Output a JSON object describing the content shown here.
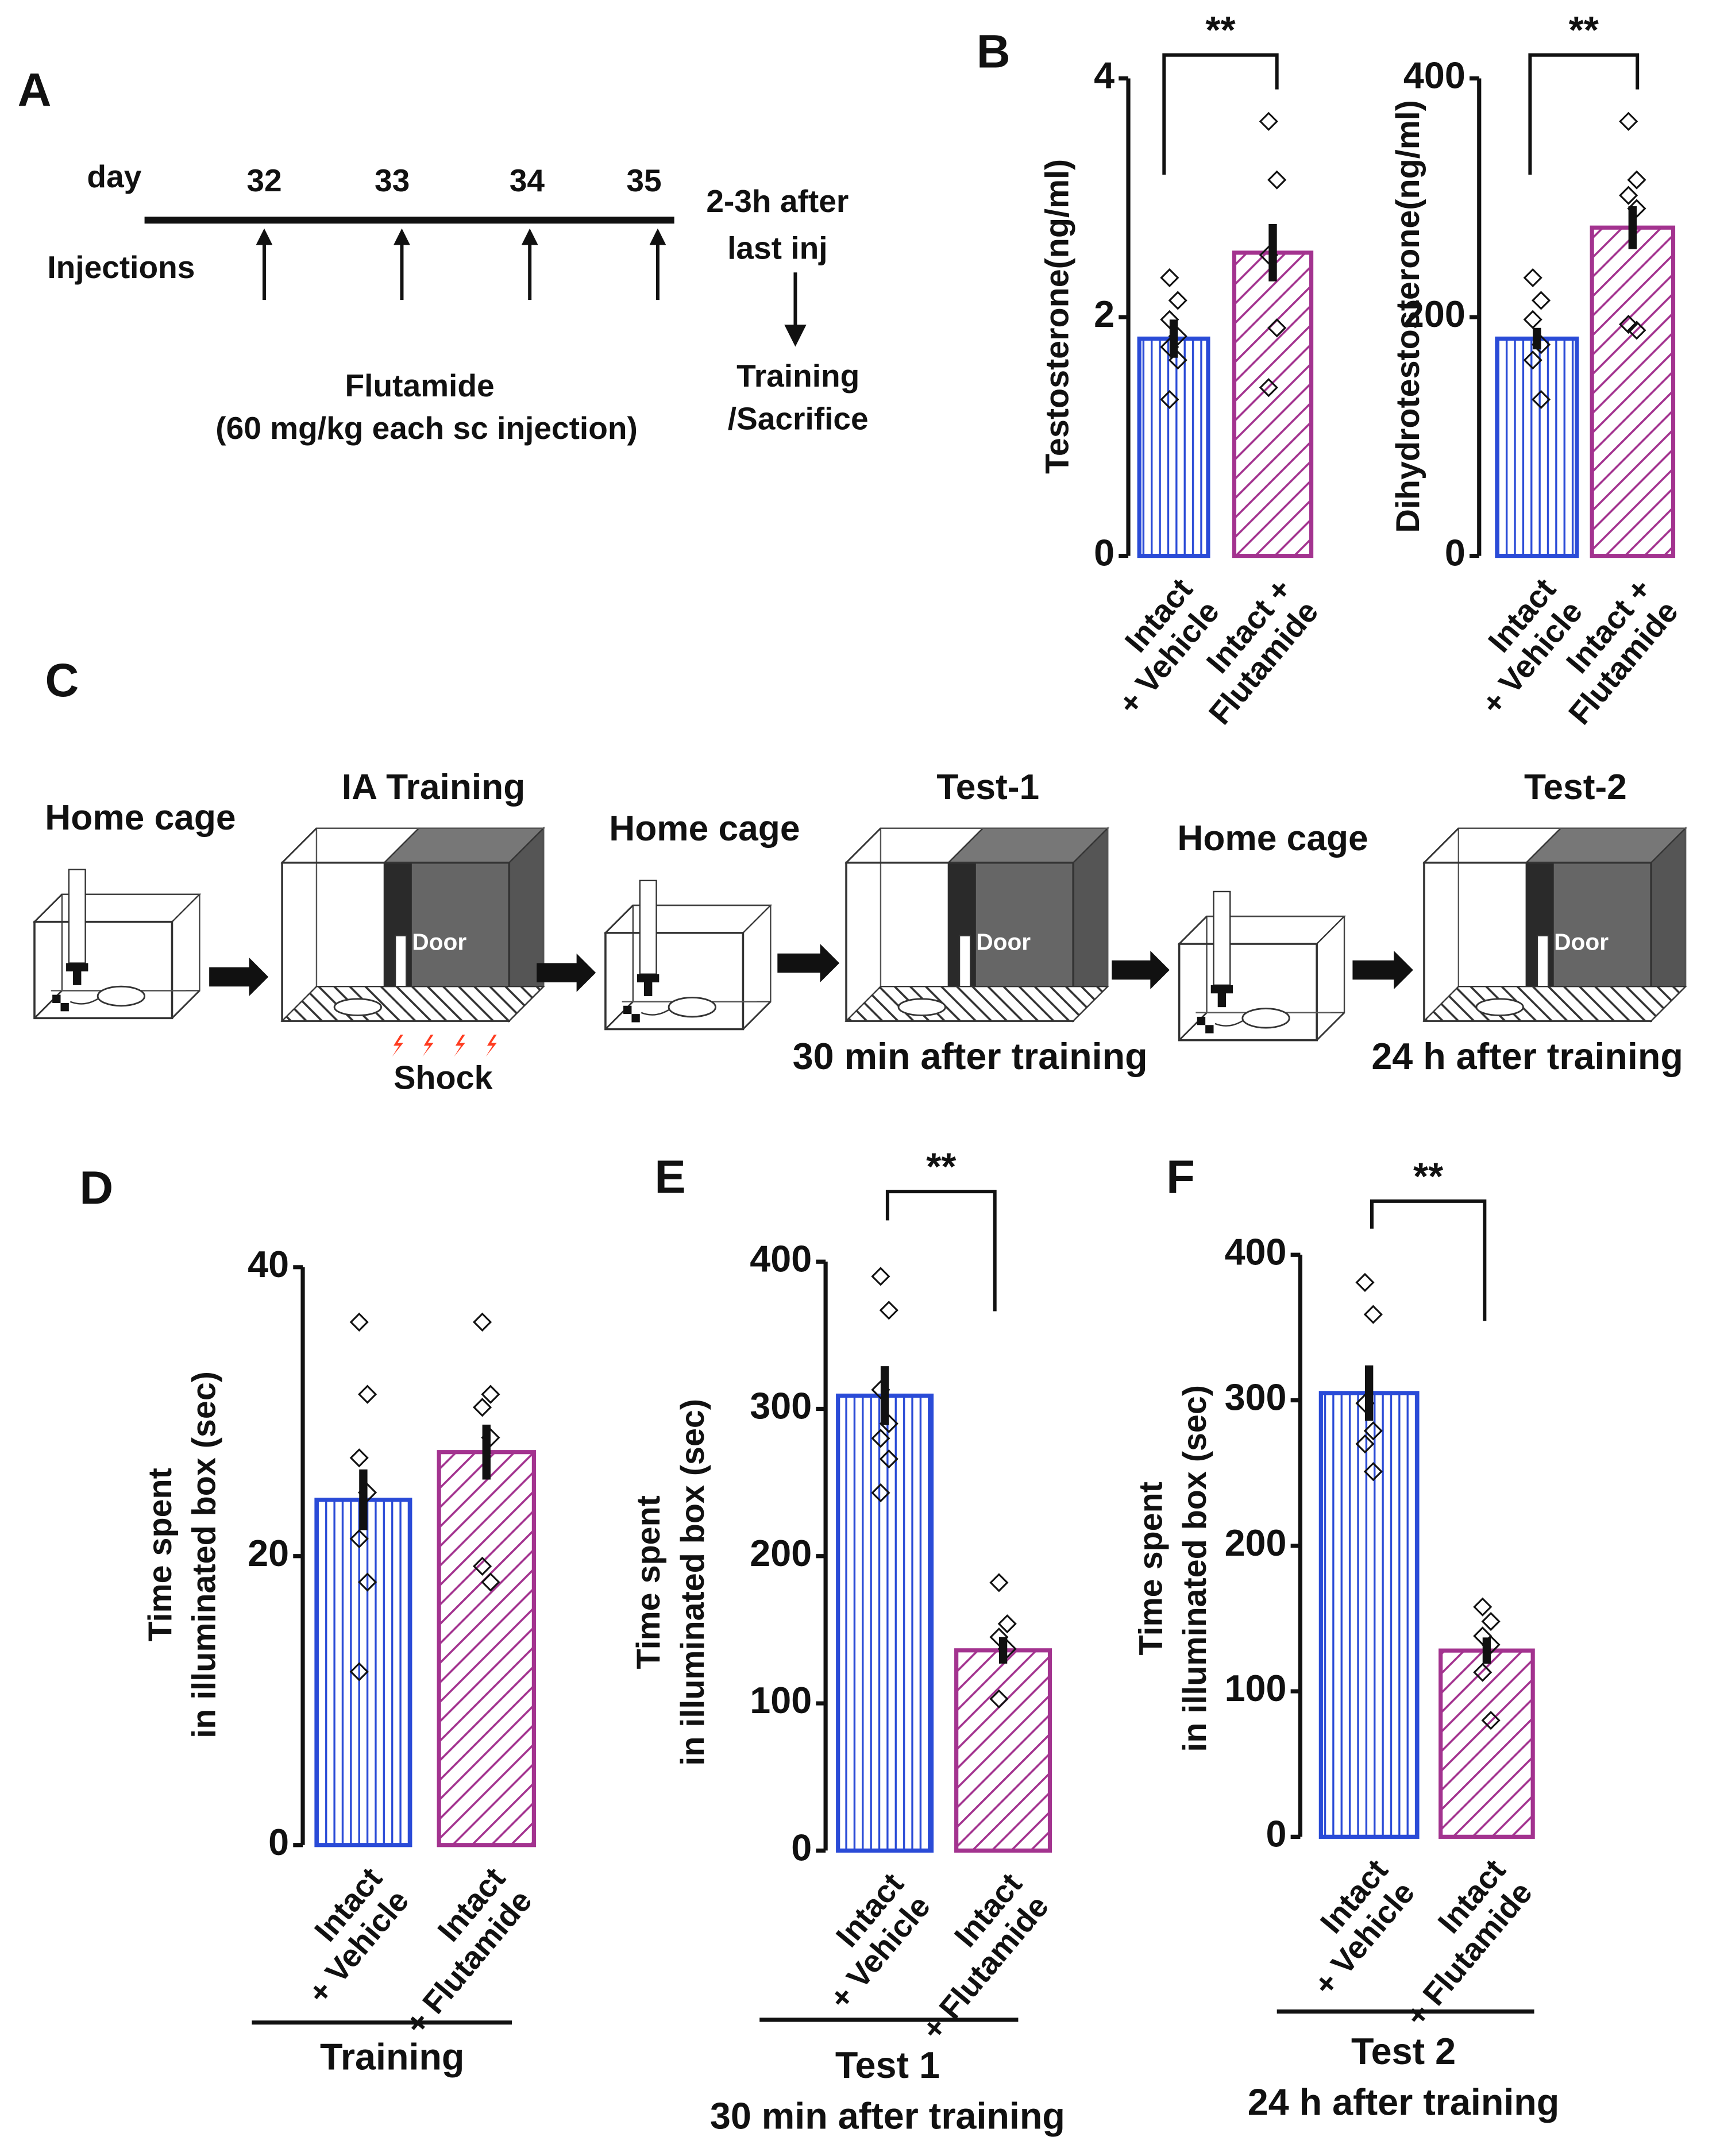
{
  "panel_labels": [
    "A",
    "B",
    "C",
    "D",
    "E",
    "F"
  ],
  "timeline": {
    "day_label": "day",
    "days": [
      "32",
      "33",
      "34",
      "35"
    ],
    "injections_label": "Injections",
    "after": [
      "2-3h after",
      "last inj"
    ],
    "outcome": [
      "Training",
      "/Sacrifice"
    ],
    "drug": [
      "Flutamide",
      "(60 mg/kg each sc injection)"
    ]
  },
  "protocol": {
    "stages": [
      "Home cage",
      "IA Training",
      "Home cage",
      "Test-1",
      "Home cage",
      "Test-2"
    ],
    "door": "Door",
    "shock": "Shock",
    "test1_time": "30 min after training",
    "test2_time": "24 h after training"
  },
  "chart_data": [
    {
      "type": "bar",
      "ylabel": [
        "Testosterone(ng/ml)"
      ],
      "categories": [
        [
          "Intact",
          "+ Vehicle"
        ],
        [
          "Intact +",
          "Flutamide"
        ]
      ],
      "values": [
        1.82,
        2.54
      ],
      "errors": [
        0.16,
        0.24
      ],
      "points": [
        [
          2.33,
          2.14,
          1.98,
          1.84,
          1.75,
          1.64,
          1.31
        ],
        [
          3.64,
          3.15,
          2.52,
          1.91,
          1.41
        ]
      ],
      "colors": [
        "#2a4bd7",
        "#a3338f"
      ],
      "ylim": [
        0,
        4
      ],
      "yticks": [
        0,
        2,
        4
      ],
      "significance": "**"
    },
    {
      "type": "bar",
      "ylabel": [
        "Dihydrotestosterone(ng/ml)"
      ],
      "categories": [
        [
          "Intact",
          "+ Vehicle"
        ],
        [
          "Intact +",
          "Flutamide"
        ]
      ],
      "values": [
        182,
        275
      ],
      "errors": [
        9,
        18
      ],
      "points": [
        [
          233,
          214,
          198,
          177,
          164,
          131
        ],
        [
          364,
          315,
          302,
          291,
          194,
          189
        ]
      ],
      "colors": [
        "#2a4bd7",
        "#a3338f"
      ],
      "ylim": [
        0,
        400
      ],
      "yticks": [
        0,
        200,
        400
      ],
      "significance": "**"
    },
    {
      "type": "bar",
      "ylabel": [
        "Time spent",
        "in illuminated box (sec)"
      ],
      "categories": [
        [
          "Intact",
          "+ Vehicle"
        ],
        [
          "Intact",
          "+ Flutamide"
        ]
      ],
      "values": [
        23.9,
        27.2
      ],
      "errors": [
        2.1,
        1.9
      ],
      "points": [
        [
          36.2,
          31.2,
          26.8,
          24.4,
          21.2,
          18.2,
          12
        ],
        [
          36.2,
          31.2,
          30.3,
          28.2,
          19.3,
          18.2
        ]
      ],
      "colors": [
        "#2a4bd7",
        "#a3338f"
      ],
      "ylim": [
        0,
        40
      ],
      "yticks": [
        0,
        20,
        40
      ],
      "group_label": [
        "Training"
      ]
    },
    {
      "type": "bar",
      "ylabel": [
        "Time spent",
        "in illuminated box (sec)"
      ],
      "categories": [
        [
          "Intact",
          "+ Vehicle"
        ],
        [
          "Intact",
          "+ Flutamide"
        ]
      ],
      "values": [
        309,
        136
      ],
      "errors": [
        20,
        9
      ],
      "points": [
        [
          390,
          367,
          313,
          290,
          280,
          266,
          243
        ],
        [
          182,
          154,
          145,
          137,
          103
        ]
      ],
      "colors": [
        "#2a4bd7",
        "#a3338f"
      ],
      "ylim": [
        0,
        400
      ],
      "yticks": [
        0,
        100,
        200,
        300,
        400
      ],
      "significance": "**",
      "group_label": [
        "Test 1",
        "30 min after training"
      ]
    },
    {
      "type": "bar",
      "ylabel": [
        "Time spent",
        "in illuminated box (sec)"
      ],
      "categories": [
        [
          "Intact",
          "+ Vehicle"
        ],
        [
          "Intact",
          "+ Flutamide"
        ]
      ],
      "values": [
        305,
        128
      ],
      "errors": [
        19,
        9
      ],
      "points": [
        [
          381,
          359,
          298,
          279,
          270,
          251
        ],
        [
          158,
          148,
          138,
          132,
          113,
          80
        ]
      ],
      "colors": [
        "#2a4bd7",
        "#a3338f"
      ],
      "ylim": [
        0,
        400
      ],
      "yticks": [
        0,
        100,
        200,
        300,
        400
      ],
      "significance": "**",
      "group_label": [
        "Test 2",
        "24 h after training"
      ]
    }
  ]
}
